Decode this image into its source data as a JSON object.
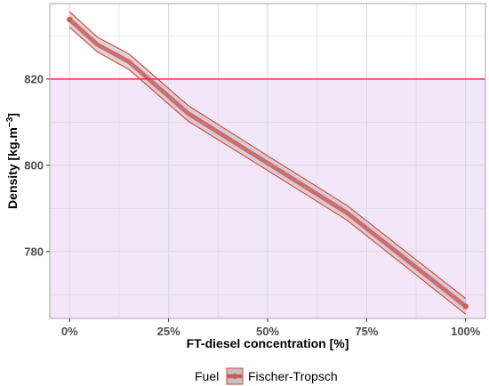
{
  "chart_data": {
    "type": "line",
    "xlabel": "FT-diesel concentration [%]",
    "ylabel_main": "Density [kg.m",
    "ylabel_sup": "−3",
    "ylabel_close": "]",
    "xlim": [
      -5,
      105
    ],
    "ylim": [
      764.5,
      837.5
    ],
    "x_ticks": [
      0,
      25,
      50,
      75,
      100
    ],
    "x_tick_labels": [
      "0%",
      "25%",
      "50%",
      "75%",
      "100%"
    ],
    "y_ticks": [
      780,
      800,
      820
    ],
    "y_tick_labels": [
      "780",
      "800",
      "820"
    ],
    "reference_line": {
      "y": 820,
      "color": "#e0344a"
    },
    "shaded_region": {
      "from": 764.5,
      "to": 820,
      "color": "#f3e6f8"
    },
    "grid": true,
    "legend_position": "bottom",
    "legend_title": "Fuel",
    "series": [
      {
        "name": "Fischer-Tropsch",
        "color": "#cd5c5c",
        "x": [
          0,
          7,
          15,
          30,
          50,
          70,
          100
        ],
        "y": [
          833.8,
          828.0,
          824.0,
          812.0,
          800.5,
          789.0,
          767.3
        ],
        "lower": [
          832.0,
          826.3,
          822.2,
          810.2,
          798.8,
          787.3,
          765.5
        ],
        "upper": [
          835.6,
          829.7,
          825.8,
          813.8,
          802.2,
          790.7,
          769.1
        ]
      }
    ]
  },
  "colors": {
    "ribbon_fill": "#c6c0c4",
    "band_edge": "#d9422b",
    "panel_border": "#b3b3b3",
    "grid": "#dcd7dd"
  }
}
